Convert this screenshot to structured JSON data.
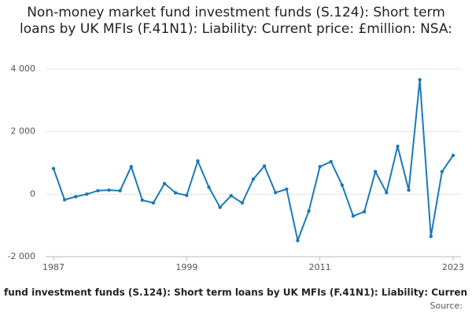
{
  "chart_data": {
    "type": "line",
    "title": "Non-money market fund investment funds (S.124): Short term loans by UK MFIs (F.41N1): Liability: Current price: £million: NSA:",
    "x_label": "fund investment funds (S.124): Short term loans by UK MFIs (F.41N1): Liability: Curren",
    "source": "Source:",
    "x": [
      1987,
      1988,
      1989,
      1990,
      1991,
      1992,
      1993,
      1994,
      1995,
      1996,
      1997,
      1998,
      1999,
      2000,
      2001,
      2002,
      2003,
      2004,
      2005,
      2006,
      2007,
      2008,
      2009,
      2010,
      2011,
      2012,
      2013,
      2014,
      2015,
      2016,
      2017,
      2018,
      2019,
      2020,
      2021,
      2022,
      2023
    ],
    "values": [
      820,
      -180,
      -80,
      0,
      110,
      130,
      110,
      880,
      -190,
      -280,
      340,
      40,
      -40,
      1060,
      220,
      -420,
      -50,
      -280,
      480,
      900,
      50,
      160,
      -1480,
      -540,
      880,
      1040,
      290,
      -700,
      -560,
      720,
      50,
      1530,
      130,
      3660,
      -1350,
      720,
      1240
    ],
    "color": "#1a7ab5",
    "xlim": [
      1987,
      2023
    ],
    "xticks": [
      1987,
      1999,
      2011,
      2023
    ],
    "ylim": [
      -2000,
      4000
    ],
    "yticks": [
      {
        "value": -2000,
        "label": "-2 000"
      },
      0,
      {
        "value": 2000,
        "label": "2 000"
      },
      {
        "value": 4000,
        "label": "4 000"
      }
    ],
    "grid": true
  }
}
